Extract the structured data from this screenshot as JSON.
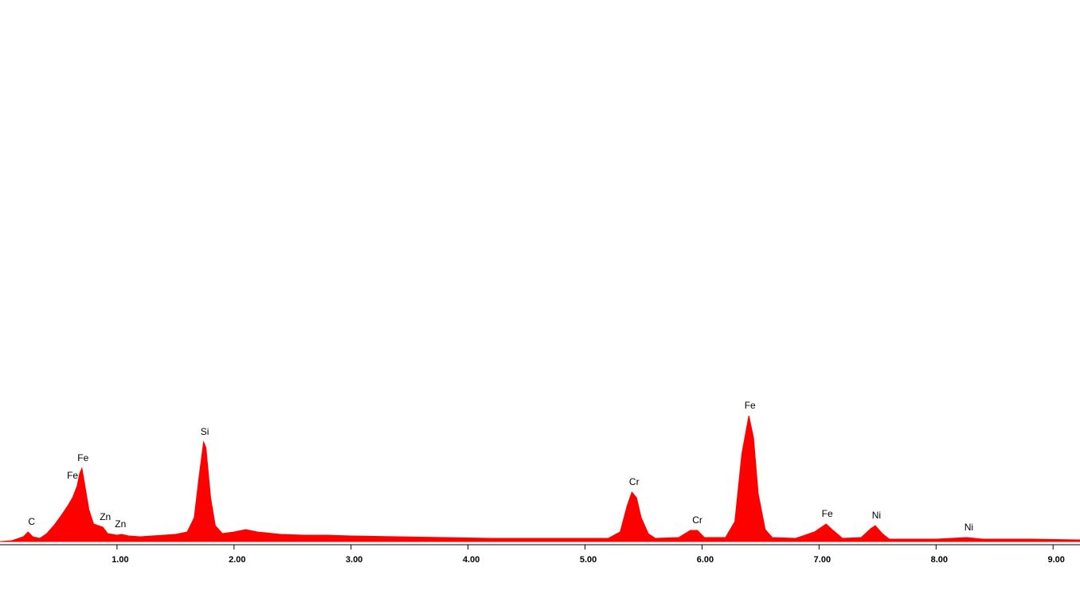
{
  "chart_data": {
    "type": "area",
    "color": "#ff0000",
    "xlim": [
      0,
      9.23
    ],
    "ylim": [
      0,
      680
    ],
    "xticks": [
      {
        "value": 1,
        "label": "1.00"
      },
      {
        "value": 2,
        "label": "2.00"
      },
      {
        "value": 3,
        "label": "3.00"
      },
      {
        "value": 4,
        "label": "4.00"
      },
      {
        "value": 5,
        "label": "5.00"
      },
      {
        "value": 6,
        "label": "6.00"
      },
      {
        "value": 7,
        "label": "7.00"
      },
      {
        "value": 8,
        "label": "8.00"
      },
      {
        "value": 9,
        "label": "9.00"
      }
    ],
    "x": [
      0.0,
      0.1,
      0.2,
      0.24,
      0.28,
      0.34,
      0.4,
      0.46,
      0.52,
      0.58,
      0.62,
      0.66,
      0.68,
      0.7,
      0.72,
      0.76,
      0.8,
      0.84,
      0.88,
      0.92,
      1.0,
      1.04,
      1.1,
      1.2,
      1.3,
      1.4,
      1.5,
      1.6,
      1.66,
      1.7,
      1.74,
      1.76,
      1.8,
      1.84,
      1.9,
      2.0,
      2.1,
      2.2,
      2.4,
      2.6,
      2.8,
      3.0,
      3.4,
      3.8,
      4.2,
      4.6,
      5.0,
      5.2,
      5.3,
      5.36,
      5.4,
      5.44,
      5.48,
      5.54,
      5.6,
      5.8,
      5.9,
      5.96,
      6.02,
      6.2,
      6.28,
      6.34,
      6.4,
      6.44,
      6.48,
      6.54,
      6.6,
      6.8,
      6.96,
      7.06,
      7.12,
      7.2,
      7.36,
      7.44,
      7.48,
      7.54,
      7.6,
      8.0,
      8.26,
      8.4,
      8.8,
      9.23
    ],
    "values": [
      0,
      1,
      6,
      12,
      6,
      4,
      10,
      20,
      32,
      45,
      55,
      70,
      85,
      92,
      75,
      40,
      22,
      20,
      18,
      10,
      8,
      9,
      7,
      6,
      7,
      8,
      9,
      12,
      30,
      80,
      125,
      118,
      55,
      20,
      10,
      12,
      15,
      12,
      9,
      8,
      8,
      7,
      6,
      5,
      4,
      4,
      4,
      4,
      12,
      45,
      62,
      55,
      30,
      10,
      4,
      5,
      14,
      14,
      5,
      5,
      25,
      110,
      158,
      130,
      60,
      15,
      5,
      4,
      12,
      22,
      14,
      4,
      5,
      16,
      20,
      10,
      3,
      3,
      5,
      3,
      3,
      2
    ],
    "annotations": [
      {
        "text": "C",
        "x": 0.27
      },
      {
        "text": "Fe",
        "x": 0.62
      },
      {
        "text": "Fe",
        "x": 0.71
      },
      {
        "text": "Zn",
        "x": 0.9
      },
      {
        "text": "Zn",
        "x": 1.03
      },
      {
        "text": "Si",
        "x": 1.75
      },
      {
        "text": "Cr",
        "x": 5.42
      },
      {
        "text": "Cr",
        "x": 5.96
      },
      {
        "text": "Fe",
        "x": 6.41
      },
      {
        "text": "Fe",
        "x": 7.07
      },
      {
        "text": "Ni",
        "x": 7.49
      },
      {
        "text": "Ni",
        "x": 8.28
      }
    ]
  }
}
